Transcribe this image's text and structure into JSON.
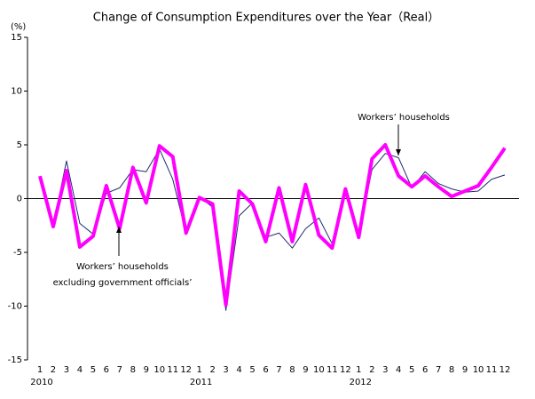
{
  "chart_data": {
    "type": "line",
    "title": "Change of Consumption Expenditures over the Year（Real）",
    "y_unit_label": "(%)",
    "categories": [
      "1",
      "2",
      "3",
      "4",
      "5",
      "6",
      "7",
      "8",
      "9",
      "10",
      "11",
      "12",
      "1",
      "2",
      "3",
      "4",
      "5",
      "6",
      "7",
      "8",
      "9",
      "10",
      "11",
      "12",
      "1",
      "2",
      "3",
      "4",
      "5",
      "6",
      "7",
      "8",
      "9",
      "10",
      "11",
      "12"
    ],
    "years": [
      "2010",
      "2011",
      "2012"
    ],
    "series": [
      {
        "color": "#1f2a6e",
        "width": 1,
        "values": [
          2.0,
          -2.5,
          3.5,
          -2.3,
          -3.3,
          0.5,
          1.0,
          2.7,
          2.5,
          4.6,
          1.8,
          -3.2,
          0.2,
          -0.8,
          -10.4,
          -1.6,
          -0.4,
          -3.6,
          -3.2,
          -4.6,
          -2.8,
          -1.8,
          -4.2,
          0.7,
          -3.5,
          2.7,
          4.2,
          3.8,
          1.0,
          2.5,
          1.4,
          0.9,
          0.6,
          0.7,
          1.8,
          2.2
        ]
      },
      {
        "color": "#ff00ff",
        "width": 4,
        "values": [
          2.1,
          -2.6,
          2.6,
          -4.5,
          -3.5,
          1.2,
          -2.8,
          2.9,
          -0.4,
          4.9,
          3.9,
          -3.2,
          0.1,
          -0.5,
          -9.9,
          0.7,
          -0.5,
          -4.0,
          1.0,
          -4.0,
          1.3,
          -3.4,
          -4.6,
          0.9,
          -3.6,
          3.7,
          5.0,
          2.1,
          1.1,
          2.1,
          1.1,
          0.2,
          0.7,
          1.2,
          2.9,
          4.7
        ]
      }
    ],
    "ylim": [
      -15,
      15
    ],
    "yticks": [
      15,
      10,
      5,
      0,
      -5,
      -10,
      -15
    ],
    "annotations": [
      {
        "lines": [
          "Workers’ households"
        ]
      },
      {
        "lines": [
          "Workers’ households",
          "excluding government officials’"
        ]
      }
    ]
  }
}
